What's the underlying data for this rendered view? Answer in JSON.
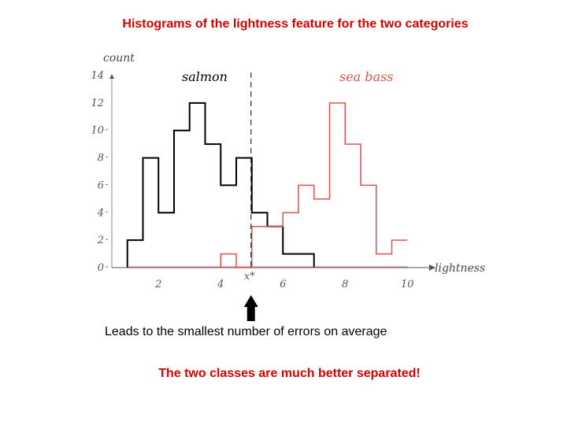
{
  "slide": {
    "title": "Histograms of the lightness feature for the two categories",
    "title_color": "#d40000",
    "caption_1": "Leads to the smallest number of errors on average",
    "caption_2": "The two classes are much better separated!",
    "caption_2_color": "#d40000"
  },
  "chart_data": {
    "type": "histogram",
    "xlabel": "lightness",
    "ylabel": "count",
    "xlim": [
      0.5,
      10.5
    ],
    "ylim": [
      0,
      14
    ],
    "x_ticks": [
      2,
      4,
      6,
      8,
      10
    ],
    "y_ticks": [
      0,
      2,
      4,
      6,
      8,
      10,
      12,
      14
    ],
    "bin_edges": [
      1,
      1.5,
      2,
      2.5,
      3,
      3.5,
      4,
      4.5,
      5,
      5.5,
      6,
      6.5,
      7,
      7.5,
      8,
      8.5,
      9,
      9.5,
      10
    ],
    "series": [
      {
        "name": "salmon",
        "color": "#000000",
        "counts": [
          2,
          8,
          4,
          10,
          12,
          9,
          6,
          8,
          4,
          3,
          1,
          1,
          0,
          0,
          0,
          0,
          0,
          0
        ]
      },
      {
        "name": "sea bass",
        "color": "#e05050",
        "counts": [
          0,
          0,
          0,
          0,
          0,
          0,
          1,
          0,
          3,
          3,
          4,
          6,
          5,
          12,
          9,
          6,
          1,
          2
        ]
      }
    ],
    "threshold": {
      "x": 5,
      "label": "x*"
    }
  }
}
